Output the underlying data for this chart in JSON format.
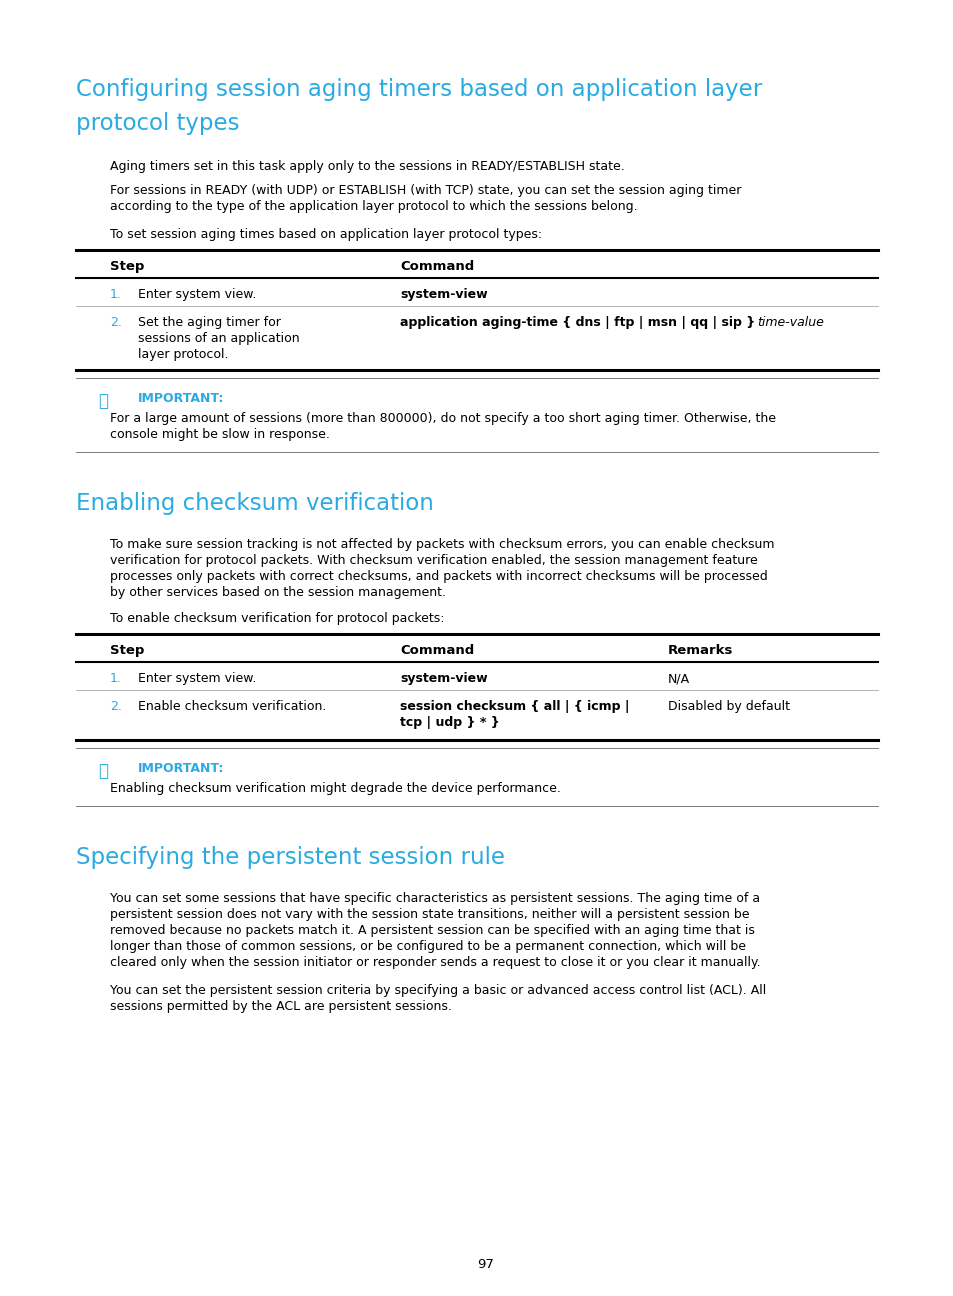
{
  "bg_color": "#ffffff",
  "heading_color": "#29abe2",
  "text_color": "#000000",
  "cyan_color": "#29abe2",
  "important_color": "#29abe2",
  "section1_title_line1": "Configuring session aging timers based on application layer",
  "section1_title_line2": "protocol types",
  "section1_para1": "Aging timers set in this task apply only to the sessions in READY/ESTABLISH state.",
  "section1_para2a": "For sessions in READY (with UDP) or ESTABLISH (with TCP) state, you can set the session aging timer",
  "section1_para2b": "according to the type of the application layer protocol to which the sessions belong.",
  "section1_para3": "To set session aging times based on application layer protocol types:",
  "important1_line1": "For a large amount of sessions (more than 800000), do not specify a too short aging timer. Otherwise, the",
  "important1_line2": "console might be slow in response.",
  "section2_title": "Enabling checksum verification",
  "section2_para1a": "To make sure session tracking is not affected by packets with checksum errors, you can enable checksum",
  "section2_para1b": "verification for protocol packets. With checksum verification enabled, the session management feature",
  "section2_para1c": "processes only packets with correct checksums, and packets with incorrect checksums will be processed",
  "section2_para1d": "by other services based on the session management.",
  "section2_para2": "To enable checksum verification for protocol packets:",
  "important2_line1": "Enabling checksum verification might degrade the device performance.",
  "section3_title": "Specifying the persistent session rule",
  "section3_para1a": "You can set some sessions that have specific characteristics as persistent sessions. The aging time of a",
  "section3_para1b": "persistent session does not vary with the session state transitions, neither will a persistent session be",
  "section3_para1c": "removed because no packets match it. A persistent session can be specified with an aging time that is",
  "section3_para1d": "longer than those of common sessions, or be configured to be a permanent connection, which will be",
  "section3_para1e": "cleared only when the session initiator or responder sends a request to close it or you clear it manually.",
  "section3_para2a": "You can set the persistent session criteria by specifying a basic or advanced access control list (ACL). All",
  "section3_para2b": "sessions permitted by the ACL are persistent sessions.",
  "page_number": "97"
}
